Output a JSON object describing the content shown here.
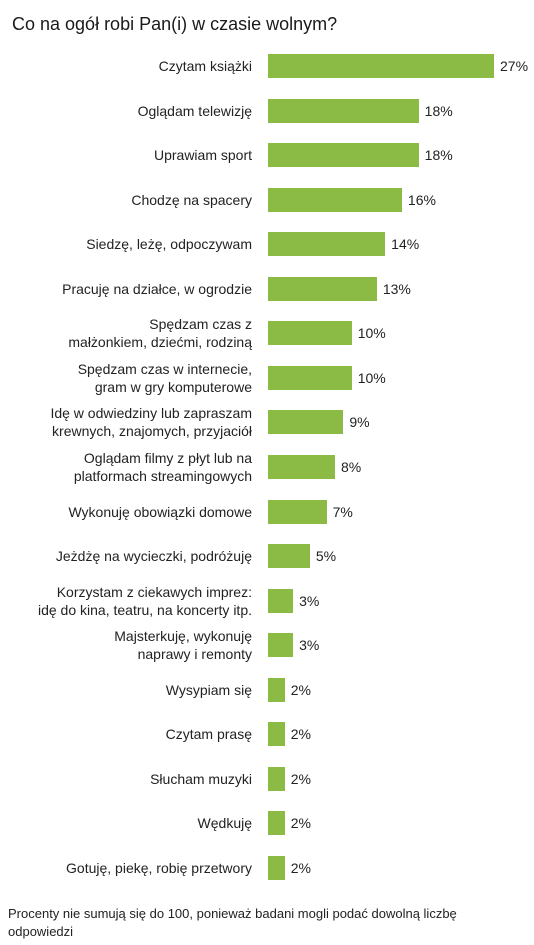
{
  "chart_data": {
    "type": "bar",
    "orientation": "horizontal",
    "title": "Co na ogół robi Pan(i) w czasie wolnym?",
    "categories": [
      "Czytam książki",
      "Oglądam telewizję",
      "Uprawiam sport",
      "Chodzę na spacery",
      "Siedzę, leżę, odpoczywam",
      "Pracuję na działce, w ogrodzie",
      "Spędzam czas z małżonkiem, dziećmi, rodziną",
      "Spędzam czas w internecie, gram w gry komputerowe",
      "Idę w odwiedziny lub zapraszam krewnych, znajomych, przyjaciół",
      "Oglądam filmy z płyt lub na platformach streamingowych",
      "Wykonuję obowiązki domowe",
      "Jeżdżę na wycieczki, podróżuję",
      "Korzystam z ciekawych imprez: idę do kina, teatru, na koncerty itp.",
      "Majsterkuję, wykonuję naprawy i remonty",
      "Wysypiam się",
      "Czytam prasę",
      "Słucham muzyki",
      "Wędkuję",
      "Gotuję, piekę, robię przetwory"
    ],
    "values": [
      27,
      18,
      18,
      16,
      14,
      13,
      10,
      10,
      9,
      8,
      7,
      5,
      3,
      3,
      2,
      2,
      2,
      2,
      2
    ],
    "value_labels": [
      "27%",
      "18%",
      "18%",
      "16%",
      "14%",
      "13%",
      "10%",
      "10%",
      "9%",
      "8%",
      "7%",
      "5%",
      "3%",
      "3%",
      "2%",
      "2%",
      "2%",
      "2%",
      "2%"
    ],
    "color": "#8cbb45",
    "note": "Procenty nie sumują się do 100, ponieważ badani mogli podać dowolną liczbę odpowiedzi"
  }
}
